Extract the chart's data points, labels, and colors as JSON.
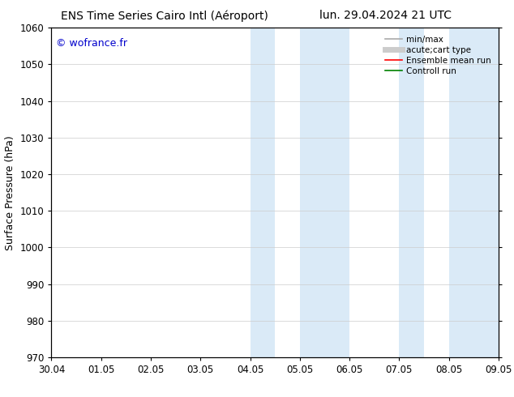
{
  "title_left": "ENS Time Series Cairo Intl (Aéroport)",
  "title_right": "lun. 29.04.2024 21 UTC",
  "ylabel": "Surface Pressure (hPa)",
  "ylim": [
    970,
    1060
  ],
  "yticks": [
    970,
    980,
    990,
    1000,
    1010,
    1020,
    1030,
    1040,
    1050,
    1060
  ],
  "xtick_labels": [
    "30.04",
    "01.05",
    "02.05",
    "03.05",
    "04.05",
    "05.05",
    "06.05",
    "07.05",
    "08.05",
    "09.05"
  ],
  "xtick_positions": [
    0,
    1,
    2,
    3,
    4,
    5,
    6,
    7,
    8,
    9
  ],
  "shaded_bands": [
    {
      "x_start": 4.0,
      "x_end": 4.5
    },
    {
      "x_start": 5.0,
      "x_end": 6.0
    },
    {
      "x_start": 7.0,
      "x_end": 7.5
    },
    {
      "x_start": 8.0,
      "x_end": 9.0
    }
  ],
  "shaded_color": "#daeaf7",
  "watermark_text": "© wofrance.fr",
  "watermark_color": "#0000cc",
  "legend_entries": [
    {
      "label": "min/max",
      "color": "#aaaaaa",
      "lw": 1.2
    },
    {
      "label": "acute;cart type",
      "color": "#cccccc",
      "lw": 5
    },
    {
      "label": "Ensemble mean run",
      "color": "red",
      "lw": 1.2
    },
    {
      "label": "Controll run",
      "color": "green",
      "lw": 1.2
    }
  ],
  "background_color": "#ffffff",
  "grid_color": "#cccccc",
  "title_fontsize": 10,
  "axis_label_fontsize": 9,
  "tick_fontsize": 8.5,
  "watermark_fontsize": 9
}
